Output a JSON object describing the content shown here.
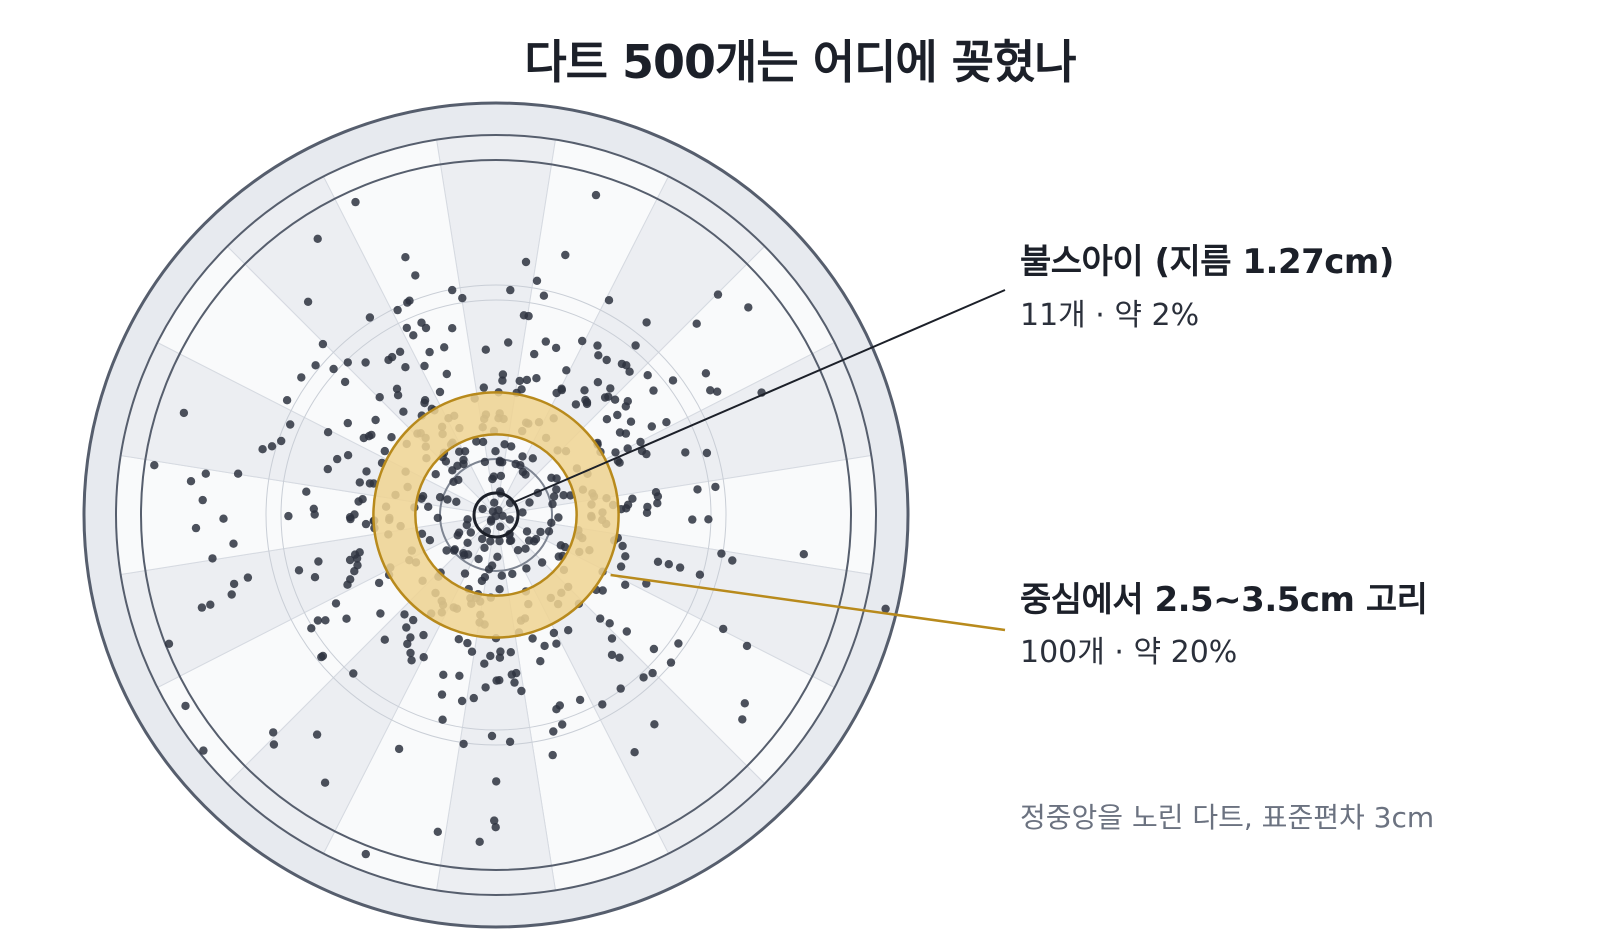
{
  "title": "다트 500개는 어디에 꽂혔나",
  "chart_data": {
    "type": "scatter",
    "title": "다트 500개는 어디에 꽂혔나",
    "total_darts": 500,
    "aim": "center",
    "std_dev_cm": 3,
    "board": {
      "segments": 20,
      "ring_colors": {
        "light_sector": "#f9fafb",
        "shaded_sector": "#eceef2",
        "outer_ring": "#e7eaef",
        "line": "#565e6d"
      }
    },
    "highlights": [
      {
        "name": "bullseye",
        "label": "불스아이 (지름 1.27cm)",
        "detail": "11개 · 약 2%",
        "diameter_cm": 1.27,
        "count": 11,
        "percent": 2,
        "color": "#1c2029"
      },
      {
        "name": "ring",
        "label": "중심에서 2.5~3.5cm 고리",
        "detail": "100개 · 약 20%",
        "inner_cm": 2.5,
        "outer_cm": 3.5,
        "count": 100,
        "percent": 20,
        "color": "#b88a1c",
        "fill": "#f0d392"
      }
    ],
    "note": "정중앙을 노린 다트, 표준편차 3cm",
    "dot_color": "#2e3340"
  }
}
